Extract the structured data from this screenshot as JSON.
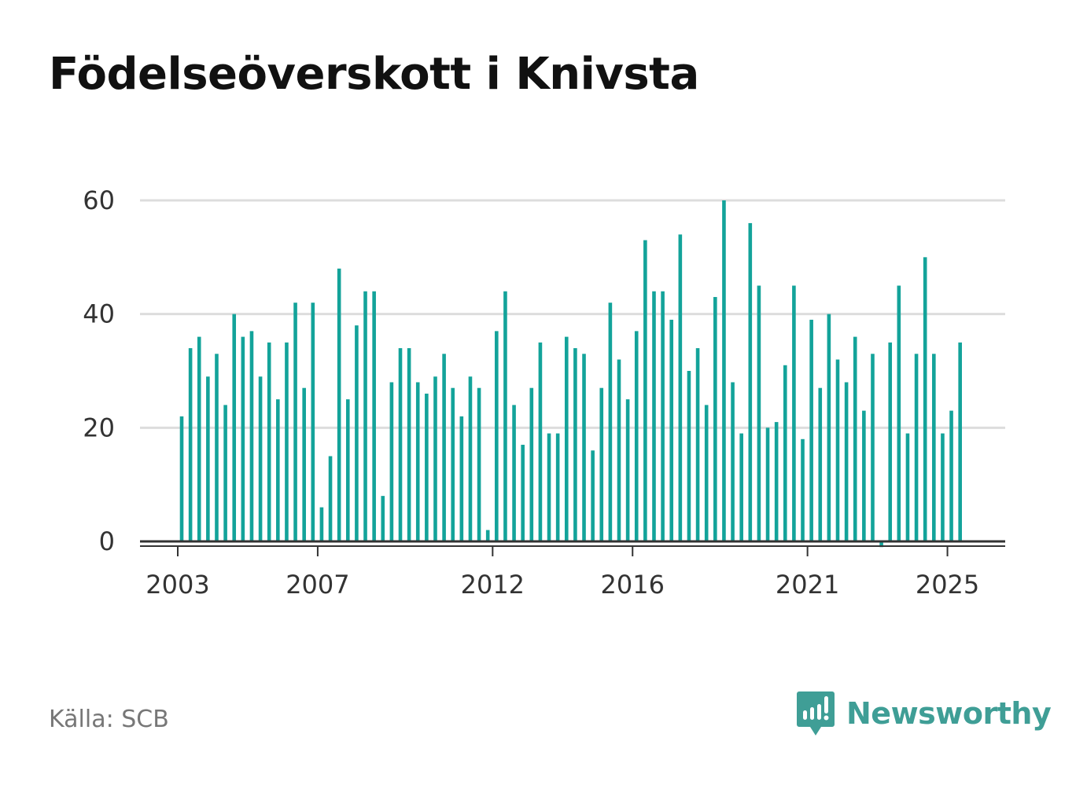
{
  "title": "Födelseöverskott i Knivsta",
  "source": "Källa: SCB",
  "brand": {
    "name": "Newsworthy",
    "icon": "newsworthy-logo-icon"
  },
  "colors": {
    "bar": "#13a39a",
    "grid": "#dddddd",
    "axis": "#333333",
    "brand": "#3f9e96"
  },
  "chart_data": {
    "type": "bar",
    "title": "Födelseöverskott i Knivsta",
    "xlabel": "",
    "ylabel": "",
    "ylim": [
      0,
      60
    ],
    "yticks": [
      0,
      20,
      40,
      60
    ],
    "xtick_labels": [
      "2003",
      "2007",
      "2012",
      "2016",
      "2021",
      "2025"
    ],
    "grid": true,
    "period_start": "2003 Q1",
    "frequency": "quarterly",
    "values": [
      22,
      34,
      36,
      29,
      33,
      24,
      40,
      36,
      37,
      29,
      35,
      25,
      35,
      42,
      27,
      42,
      6,
      15,
      48,
      25,
      38,
      44,
      44,
      8,
      28,
      34,
      34,
      28,
      26,
      29,
      33,
      27,
      22,
      29,
      27,
      2,
      37,
      44,
      24,
      17,
      27,
      35,
      19,
      19,
      36,
      34,
      33,
      16,
      27,
      42,
      32,
      25,
      37,
      53,
      44,
      44,
      39,
      54,
      30,
      34,
      24,
      43,
      60,
      28,
      19,
      56,
      45,
      20,
      21,
      31,
      45,
      18,
      39,
      27,
      40,
      32,
      28,
      36,
      23,
      33,
      -1,
      35,
      45,
      19,
      33,
      50,
      33,
      19,
      23,
      35
    ]
  }
}
